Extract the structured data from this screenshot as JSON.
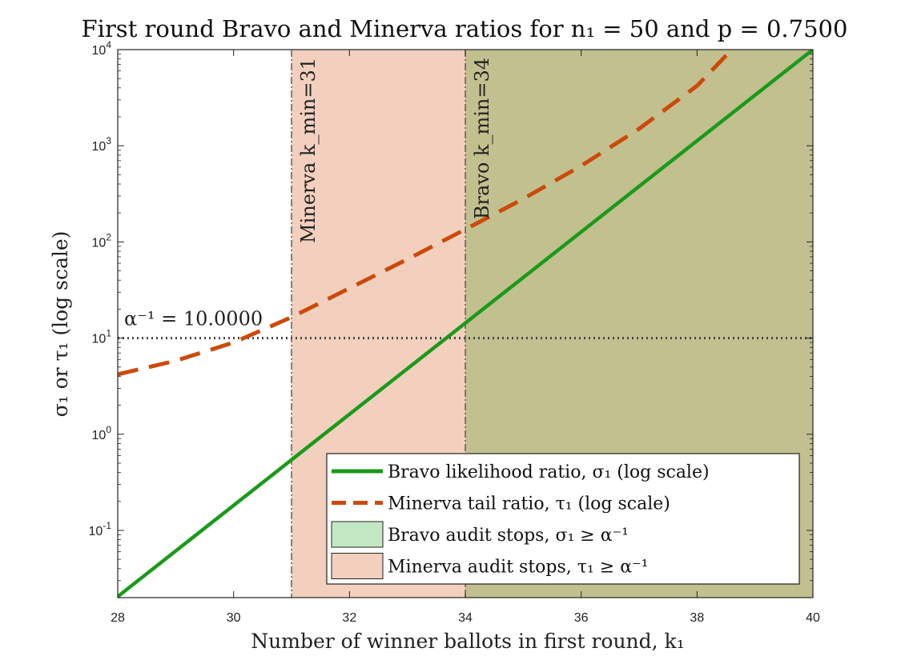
{
  "chart_data": {
    "type": "line",
    "title": "First round Bravo and Minerva ratios for n₁ = 50 and p = 0.7500",
    "xlabel": "Number of winner ballots in first round, k₁",
    "ylabel": "σ₁ or τ₁ (log scale)",
    "xlim": [
      28,
      40
    ],
    "ylim": [
      0.02,
      10000
    ],
    "yscale": "log",
    "grid": false,
    "x_ticks": [
      28,
      30,
      32,
      34,
      36,
      38,
      40
    ],
    "y_ticks": [
      {
        "value": 0.1,
        "base": "10",
        "exp": "-1"
      },
      {
        "value": 1,
        "base": "10",
        "exp": "0"
      },
      {
        "value": 10,
        "base": "10",
        "exp": "1"
      },
      {
        "value": 100,
        "base": "10",
        "exp": "2"
      },
      {
        "value": 1000,
        "base": "10",
        "exp": "3"
      },
      {
        "value": 10000,
        "base": "10",
        "exp": "4"
      }
    ],
    "series": [
      {
        "name": "Bravo likelihood ratio, σ₁ (log scale)",
        "style": "solid",
        "color": "#1a9a1a",
        "x": [
          28,
          40
        ],
        "y": [
          0.0205,
          10000
        ]
      },
      {
        "name": "Minerva tail ratio, τ₁ (log scale)",
        "style": "dashed",
        "color": "#cc4a0a",
        "x": [
          28,
          29,
          30,
          31,
          32,
          33,
          34,
          35,
          36,
          37,
          38,
          38.6
        ],
        "y": [
          4.2,
          5.8,
          9.0,
          16.5,
          33,
          66,
          135,
          280,
          620,
          1500,
          4200,
          10000
        ]
      }
    ],
    "threshold": {
      "label": "α⁻¹ = 10.0000",
      "value": 10,
      "color": "#444444"
    },
    "regions": [
      {
        "name": "Minerva audit stops, τ₁ ≥ α⁻¹",
        "x_from": 31,
        "x_to": 34,
        "color": "#f2d0bd",
        "line_label": "Minerva k_min=31",
        "line_x": 31
      },
      {
        "name": "Bravo audit stops, σ₁ ≥ α⁻¹",
        "x_from": 34,
        "x_to": 40,
        "color": "#c2c08f",
        "legend_color": "#c4e8c4",
        "line_label": "Bravo k_min=34",
        "line_x": 34
      }
    ],
    "legend": {
      "placement": "bottom-right",
      "entries": [
        {
          "label": "Bravo likelihood ratio, σ₁ (log scale)",
          "kind": "solid",
          "color": "#1a9a1a"
        },
        {
          "label": "Minerva tail ratio, τ₁ (log scale)",
          "kind": "dashed",
          "color": "#cc4a0a"
        },
        {
          "label": "Bravo audit stops, σ₁ ≥ α⁻¹",
          "kind": "patch",
          "color": "#c4e8c4"
        },
        {
          "label": "Minerva audit stops, τ₁ ≥ α⁻¹",
          "kind": "patch",
          "color": "#f2d0bd"
        }
      ]
    }
  }
}
